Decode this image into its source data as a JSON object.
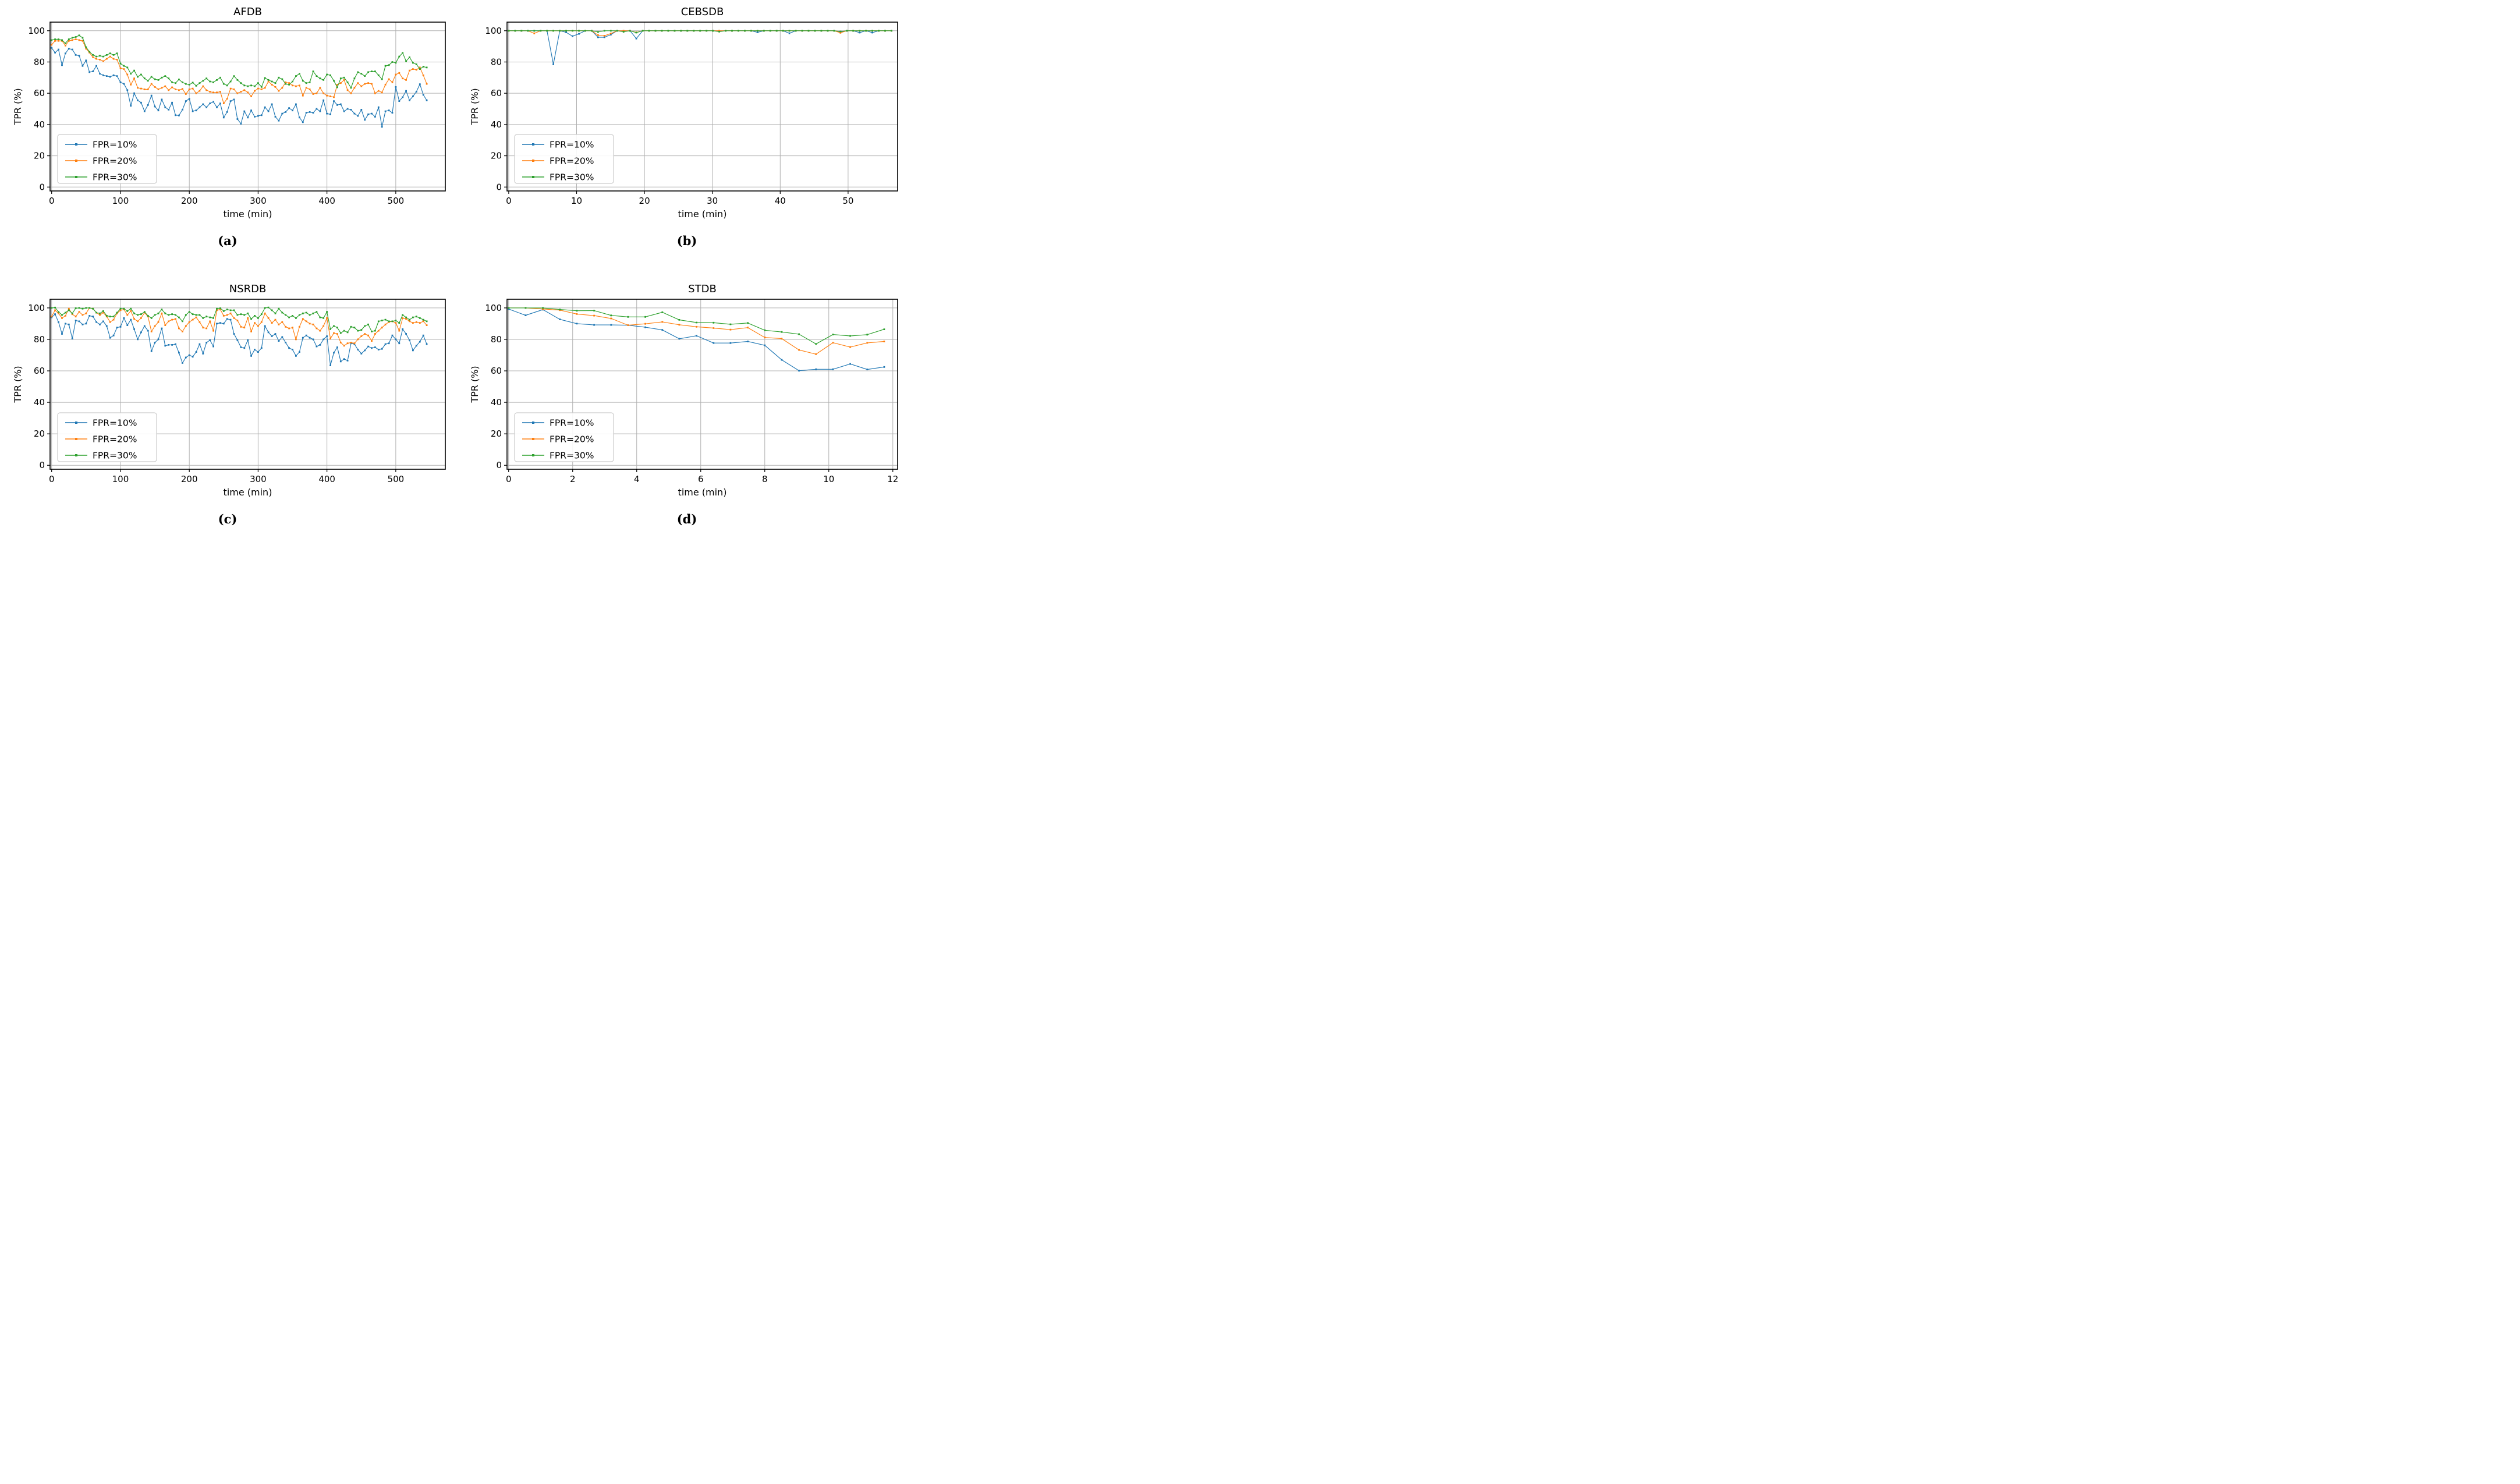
{
  "figure": {
    "type": "multi-panel line figure",
    "background": "#ffffff"
  },
  "colors": {
    "fpr10": "#1f77b4",
    "fpr20": "#ff7f0e",
    "fpr30": "#2ca02c",
    "grid": "#b0b0b0",
    "frame": "#000000",
    "legend_border": "#cccccc"
  },
  "legend": {
    "labels": [
      "FPR=10%",
      "FPR=20%",
      "FPR=30%"
    ],
    "position": "lower left"
  },
  "chart_data": [
    {
      "id": "a",
      "type": "line",
      "title": "AFDB",
      "caption": "(a)",
      "xlabel": "time (min)",
      "ylabel": "TPR (%)",
      "xlim": [
        -2.3,
        572
      ],
      "ylim": [
        -2.5,
        105.5
      ],
      "xticks": [
        0,
        100,
        200,
        300,
        400,
        500
      ],
      "yticks": [
        0,
        20,
        40,
        60,
        80,
        100
      ],
      "grid": true,
      "x_start": 0,
      "x_step": 5,
      "series": [
        {
          "name": "FPR=10%",
          "color": "#1f77b4",
          "values": [
            89,
            86,
            88,
            78,
            85.5,
            88.5,
            88,
            84.5,
            84,
            77.5,
            81,
            73.5,
            74,
            77.5,
            72.5,
            71.5,
            71,
            70.5,
            71.5,
            71,
            67,
            66,
            62,
            52,
            60,
            55.5,
            54,
            48.5,
            52.5,
            58.5,
            51.5,
            49,
            56,
            51,
            49.5,
            54,
            46,
            45.8,
            49.5,
            55,
            56.5,
            48.5,
            49,
            51,
            53,
            51,
            53.5,
            54.5,
            51,
            53.5,
            44.5,
            48,
            55,
            56,
            43.5,
            40.5,
            48.5,
            44.5,
            49,
            45,
            45.5,
            46,
            51,
            48.5,
            53,
            45,
            42.5,
            47,
            48,
            50.5,
            49,
            53,
            44.5,
            41.5,
            47.5,
            48,
            47.5,
            50,
            48.5,
            55.5,
            47,
            46.5,
            55,
            52.5,
            53,
            48.5,
            50,
            49.5,
            47,
            45.5,
            49.5,
            43,
            46.5,
            47,
            45,
            51,
            38.5,
            48.5,
            49,
            47.5,
            64,
            55,
            57.5,
            61.5,
            55.5,
            58,
            61,
            65.8,
            59,
            55.5
          ]
        },
        {
          "name": "FPR=20%",
          "color": "#ff7f0e",
          "values": [
            91,
            93.5,
            93.5,
            93.5,
            90.5,
            93.5,
            94,
            94.5,
            94,
            93.5,
            88.5,
            86,
            83,
            82,
            81.5,
            80.5,
            82,
            83.5,
            82,
            81.5,
            76,
            75.5,
            72,
            65.5,
            69.5,
            63.5,
            63,
            62.5,
            62.5,
            66,
            64,
            62.5,
            63.5,
            64.5,
            62,
            63.8,
            62.5,
            62,
            62.8,
            59.5,
            62.5,
            63,
            60,
            61.5,
            64.5,
            62,
            61,
            60.5,
            60.5,
            61,
            53.5,
            56.5,
            63,
            62.5,
            60,
            61,
            62,
            60.5,
            58,
            61.5,
            63,
            62.5,
            63.5,
            67.5,
            65.5,
            64,
            61.5,
            63.5,
            67,
            66.5,
            65,
            64.5,
            65,
            58.5,
            63.5,
            62.5,
            59.5,
            60,
            63.5,
            60,
            58.5,
            58,
            57.5,
            65.5,
            66.5,
            68.5,
            62,
            60,
            63.5,
            66.5,
            64.5,
            66,
            66.5,
            66,
            60,
            61.5,
            60.5,
            65.5,
            69,
            67,
            72,
            73,
            69.5,
            68.5,
            74.5,
            75.5,
            75,
            76.5,
            71.5,
            66
          ]
        },
        {
          "name": "FPR=30%",
          "color": "#2ca02c",
          "values": [
            94,
            94.5,
            94.5,
            94,
            92,
            94.5,
            95.5,
            96,
            97,
            95.5,
            89.5,
            86.5,
            84.5,
            83.5,
            84,
            83.5,
            84.5,
            85.5,
            84.5,
            85.5,
            79,
            77.5,
            76.5,
            72.5,
            74.5,
            70.5,
            72,
            69.5,
            68,
            70.5,
            69,
            68.5,
            70,
            71,
            69.5,
            67,
            66.5,
            68.8,
            67,
            66,
            65.5,
            66.8,
            64.8,
            66.5,
            68,
            69.5,
            67.5,
            67,
            68.5,
            70,
            66,
            65,
            67.5,
            71,
            68.5,
            66.5,
            65,
            64.5,
            65,
            64.5,
            66.5,
            64,
            69.8,
            68.5,
            67.5,
            66.5,
            70,
            69,
            66,
            65.5,
            67.5,
            71,
            72.5,
            68,
            66.5,
            67,
            74,
            71,
            69.5,
            68.5,
            72,
            71.5,
            68,
            63.8,
            69.5,
            70,
            67,
            63.5,
            69.5,
            73.5,
            72.5,
            71,
            73.5,
            74,
            74,
            71.5,
            69,
            77.5,
            78,
            80,
            79.5,
            83.5,
            85.8,
            80.5,
            83,
            79.5,
            78.5,
            75.5,
            77,
            76.5
          ]
        }
      ]
    },
    {
      "id": "b",
      "type": "line",
      "title": "CEBSDB",
      "caption": "(b)",
      "xlabel": "time (min)",
      "ylabel": "TPR (%)",
      "xlim": [
        -0.25,
        57.3
      ],
      "ylim": [
        -2.5,
        105.5
      ],
      "xticks": [
        0,
        10,
        20,
        30,
        40,
        50
      ],
      "yticks": [
        0,
        20,
        40,
        60,
        80,
        100
      ],
      "grid": true,
      "x_start": 0,
      "x_step": 0.94,
      "series": [
        {
          "name": "FPR=10%",
          "color": "#1f77b4",
          "values": [
            100,
            100,
            100,
            100,
            100,
            100,
            100,
            78.5,
            100,
            99,
            96.5,
            98,
            100,
            100,
            95.8,
            95.8,
            97.5,
            100,
            100,
            100,
            95,
            100,
            100,
            100,
            100,
            100,
            100,
            100,
            100,
            100,
            100,
            100,
            100,
            100,
            100,
            100,
            100,
            100,
            100,
            99,
            100,
            100,
            100,
            100,
            98.4,
            100,
            100,
            100,
            100,
            100,
            100,
            100,
            99.2,
            100,
            100,
            98.8,
            100,
            98.8,
            100,
            100,
            100
          ]
        },
        {
          "name": "FPR=20%",
          "color": "#ff7f0e",
          "values": [
            100,
            100,
            100,
            100,
            98.3,
            100,
            100,
            100,
            100,
            100,
            100,
            100,
            100,
            100,
            97.2,
            96.8,
            98.2,
            100,
            100,
            100,
            99,
            100,
            100,
            100,
            100,
            100,
            100,
            100,
            100,
            100,
            100,
            100,
            100,
            100,
            100,
            100,
            100,
            100,
            100,
            100,
            100,
            100,
            100,
            100,
            100,
            100,
            100,
            100,
            100,
            100,
            100,
            100,
            98.7,
            100,
            100,
            100,
            100,
            100,
            100,
            100,
            100
          ]
        },
        {
          "name": "FPR=30%",
          "color": "#2ca02c",
          "values": [
            100,
            100,
            100,
            100,
            100,
            100,
            100,
            100,
            100,
            100,
            100,
            100,
            100,
            100,
            99.2,
            100,
            100,
            100,
            99.3,
            100,
            98.8,
            100,
            100,
            100,
            100,
            100,
            100,
            100,
            100,
            100,
            100,
            100,
            100,
            99.4,
            100,
            100,
            100,
            100,
            100,
            100,
            100,
            100,
            100,
            100,
            100,
            100,
            100,
            100,
            100,
            100,
            100,
            100,
            99.5,
            100,
            100,
            100,
            100,
            100,
            100,
            100,
            100
          ]
        }
      ]
    },
    {
      "id": "c",
      "type": "line",
      "title": "NSRDB",
      "caption": "(c)",
      "xlabel": "time (min)",
      "ylabel": "TPR (%)",
      "xlim": [
        -2.3,
        572
      ],
      "ylim": [
        -2.5,
        105.5
      ],
      "xticks": [
        0,
        100,
        200,
        300,
        400,
        500
      ],
      "yticks": [
        0,
        20,
        40,
        60,
        80,
        100
      ],
      "grid": true,
      "x_start": 0,
      "x_step": 5,
      "series": [
        {
          "name": "FPR=10%",
          "color": "#1f77b4",
          "values": [
            94,
            96,
            91,
            83.5,
            90,
            89.5,
            80.5,
            92,
            91.5,
            89.5,
            90,
            95,
            94.5,
            91,
            89.5,
            91.5,
            88.5,
            81,
            82.5,
            87.5,
            88,
            93.5,
            89,
            92.5,
            86.5,
            80,
            84.5,
            88.5,
            85.5,
            72.5,
            78,
            80,
            87,
            76,
            76.5,
            76.5,
            77,
            71.5,
            65,
            68.5,
            70,
            69,
            72,
            77,
            71,
            78,
            79.5,
            75.5,
            90,
            90.5,
            90,
            93,
            92.5,
            83.5,
            79.5,
            75,
            74.5,
            79.5,
            69.5,
            73.5,
            72,
            74.5,
            88.5,
            84.5,
            82,
            83.5,
            79,
            81.5,
            78,
            74.5,
            73.5,
            69.5,
            72,
            81,
            82.5,
            81,
            80,
            75.5,
            76.5,
            80,
            82,
            63.5,
            71.5,
            75,
            66,
            67.5,
            66.5,
            77.5,
            77,
            73.5,
            71,
            73,
            75.5,
            74.5,
            75,
            73.5,
            74,
            77,
            77.5,
            82.5,
            80,
            77.5,
            86.5,
            83.5,
            79.5,
            73,
            76,
            78.5,
            82.5,
            77
          ]
        },
        {
          "name": "FPR=20%",
          "color": "#ff7f0e",
          "values": [
            94.5,
            98.5,
            96.5,
            93.5,
            95,
            99.5,
            96,
            94.5,
            97.5,
            95.5,
            96.5,
            100,
            99.5,
            97,
            95.5,
            97,
            94.5,
            91,
            92.5,
            96.5,
            98.5,
            99,
            95.5,
            98,
            93,
            91.5,
            93.5,
            97,
            94.5,
            85,
            88.5,
            91,
            96.5,
            89,
            91.5,
            92.5,
            93,
            87,
            85,
            88.5,
            91,
            92.5,
            94,
            91,
            87.5,
            87,
            91.5,
            85.5,
            98.5,
            99,
            95,
            95.5,
            96.5,
            93.5,
            92,
            88,
            87.5,
            93.5,
            85,
            90.5,
            88.5,
            91,
            96.5,
            93.5,
            90.5,
            92.5,
            89.5,
            91,
            88,
            87,
            87.5,
            80,
            88,
            93,
            91.5,
            90,
            89.5,
            87,
            85.5,
            88.5,
            93.5,
            80.5,
            84,
            83.5,
            78,
            76,
            77.5,
            78,
            77.5,
            80,
            82,
            83.5,
            82.5,
            79,
            83.5,
            85.5,
            87.5,
            89.5,
            91,
            91.5,
            90.5,
            85.5,
            93.5,
            93,
            91.5,
            90.5,
            91,
            90.5,
            91.5,
            89
          ]
        },
        {
          "name": "FPR=30%",
          "color": "#2ca02c",
          "values": [
            100,
            100.2,
            97.5,
            95.5,
            97,
            98.5,
            96.5,
            99.8,
            100,
            99.5,
            100,
            100,
            99.5,
            97,
            96.5,
            98,
            95,
            94.5,
            94.5,
            97,
            99.5,
            99.5,
            98,
            99.5,
            96.5,
            95.5,
            96,
            97.5,
            95,
            93.5,
            95.5,
            96.5,
            99,
            96.5,
            95.5,
            96,
            95.5,
            94,
            91.5,
            95.5,
            97.5,
            96,
            95.5,
            95.5,
            93.5,
            94.5,
            94,
            93.5,
            99.5,
            99.8,
            98,
            99,
            98.5,
            98.5,
            95.5,
            96,
            95.5,
            96.5,
            93,
            95,
            93.5,
            96,
            100,
            100.3,
            98.5,
            96.5,
            99.5,
            97,
            95.5,
            94,
            95,
            93.5,
            95.5,
            96.5,
            97,
            95.5,
            96.5,
            97.5,
            94,
            93.5,
            97.5,
            86.5,
            88.5,
            87.5,
            84,
            85.5,
            84.5,
            88,
            87.5,
            85.5,
            86,
            88.5,
            89.5,
            85,
            85.5,
            91.5,
            92,
            92.5,
            91.5,
            91.5,
            92,
            90.5,
            95.5,
            94,
            92.5,
            94,
            94.5,
            93.5,
            92.5,
            91.5
          ]
        }
      ]
    },
    {
      "id": "d",
      "type": "line",
      "title": "STDB",
      "caption": "(d)",
      "xlabel": "time (min)",
      "ylabel": "TPR (%)",
      "xlim": [
        -0.05,
        12.15
      ],
      "ylim": [
        -2.5,
        105.5
      ],
      "xticks": [
        0,
        2,
        4,
        6,
        8,
        10,
        12
      ],
      "yticks": [
        0,
        20,
        40,
        60,
        80,
        100
      ],
      "grid": true,
      "x": [
        0,
        0.53,
        1.07,
        1.6,
        2.13,
        2.67,
        3.2,
        3.73,
        4.27,
        4.8,
        5.33,
        5.87,
        6.4,
        6.93,
        7.47,
        8,
        8.53,
        9.07,
        9.6,
        10.13,
        10.67,
        11.2,
        11.73
      ],
      "series": [
        {
          "name": "FPR=10%",
          "color": "#1f77b4",
          "values": [
            99.3,
            95.3,
            98.9,
            92.7,
            90,
            89.2,
            89.2,
            89,
            87.7,
            86,
            80.4,
            82.3,
            77.7,
            77.7,
            78.7,
            76.2,
            67,
            60.1,
            61,
            61,
            64.4,
            60.9,
            62.5
          ]
        },
        {
          "name": "FPR=20%",
          "color": "#ff7f0e",
          "values": [
            100,
            100,
            99.3,
            98.6,
            96.1,
            95.1,
            93.3,
            89,
            89.9,
            91.1,
            89.3,
            88,
            87.2,
            86.2,
            87.5,
            81.2,
            80.5,
            73.3,
            70.6,
            77.9,
            75.1,
            77.8,
            78.7
          ]
        },
        {
          "name": "FPR=30%",
          "color": "#2ca02c",
          "values": [
            100,
            100,
            100,
            99,
            98.2,
            98.3,
            95.2,
            94.3,
            94.3,
            97.2,
            92.4,
            90.7,
            90.6,
            89.6,
            90.4,
            85.8,
            84.7,
            83.3,
            77.1,
            83.1,
            82.2,
            83,
            86.4
          ]
        }
      ]
    }
  ]
}
